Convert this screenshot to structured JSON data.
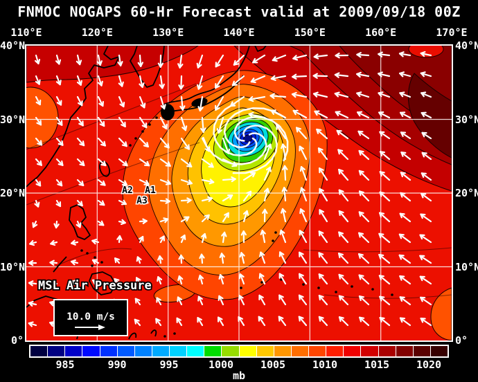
{
  "title": "FNMOC NOGAPS 60-Hr Forecast valid at 2009/09/18 00Z",
  "axes": {
    "top": [
      "110°E",
      "120°E",
      "130°E",
      "140°E",
      "150°E",
      "160°E",
      "170°E"
    ],
    "left": [
      "40°N",
      "30°N",
      "20°N",
      "10°N",
      "0°"
    ],
    "right": [
      "40°N",
      "30°N",
      "20°N",
      "10°N",
      "0°"
    ]
  },
  "map": {
    "field_label": "MSL Air Pressure",
    "storm_labels": [
      "A2",
      "A1",
      "A3"
    ],
    "wind_scale_label": "10.0 m/s"
  },
  "colorbar": {
    "unit": "mb",
    "tick_labels": [
      "985",
      "990",
      "995",
      "1000",
      "1005",
      "1010",
      "1015",
      "1020"
    ],
    "colors": [
      "#000041",
      "#000082",
      "#0000C8",
      "#000AFF",
      "#0032FF",
      "#005AFF",
      "#0082FF",
      "#00AAFF",
      "#00D2FF",
      "#00FFFF",
      "#00DC00",
      "#96DC00",
      "#FFFF00",
      "#FFC800",
      "#FF9600",
      "#FF6E00",
      "#FF4600",
      "#FF1E00",
      "#F00000",
      "#D20000",
      "#AA0000",
      "#820000",
      "#5A0000",
      "#370000"
    ]
  },
  "colors": {
    "background": "#000000",
    "map_base": "#EC1000",
    "grid": "#FFFFFF",
    "coast": "#000000",
    "arrow": "#FFFFFF",
    "box": "#000000"
  }
}
